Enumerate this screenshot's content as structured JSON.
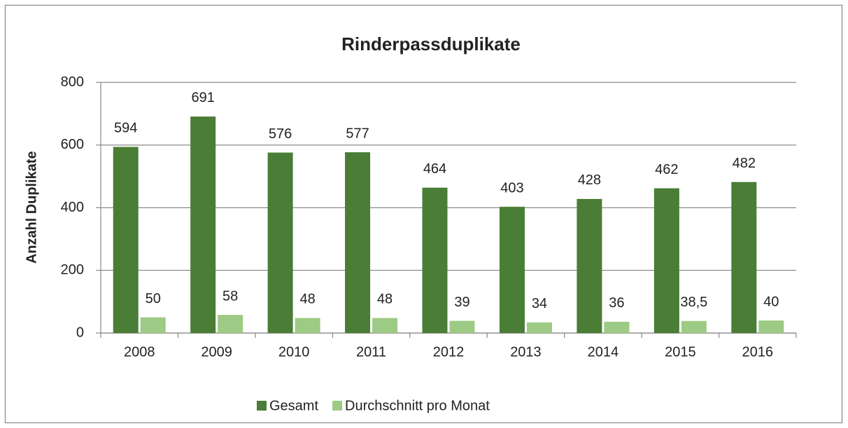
{
  "chart_data": {
    "type": "bar",
    "title": "Rinderpassduplikate",
    "y_label": "Anzahl Duplikate",
    "categories": [
      "2008",
      "2009",
      "2010",
      "2011",
      "2012",
      "2013",
      "2014",
      "2015",
      "2016"
    ],
    "series": [
      {
        "name": "Gesamt",
        "color": "#4a7d36",
        "values": [
          594,
          691,
          576,
          577,
          464,
          403,
          428,
          462,
          482
        ]
      },
      {
        "name": "Durchschnitt pro Monat",
        "color": "#9dca84",
        "values": [
          50,
          58,
          48,
          48,
          39,
          34,
          36,
          38.5,
          40
        ],
        "value_labels": [
          "50",
          "58",
          "48",
          "48",
          "39",
          "34",
          "36",
          "38,5",
          "40"
        ]
      }
    ],
    "ylim": [
      0,
      800
    ],
    "yticks": [
      0,
      200,
      400,
      600,
      800
    ],
    "grid": true,
    "legend": "bottom"
  }
}
